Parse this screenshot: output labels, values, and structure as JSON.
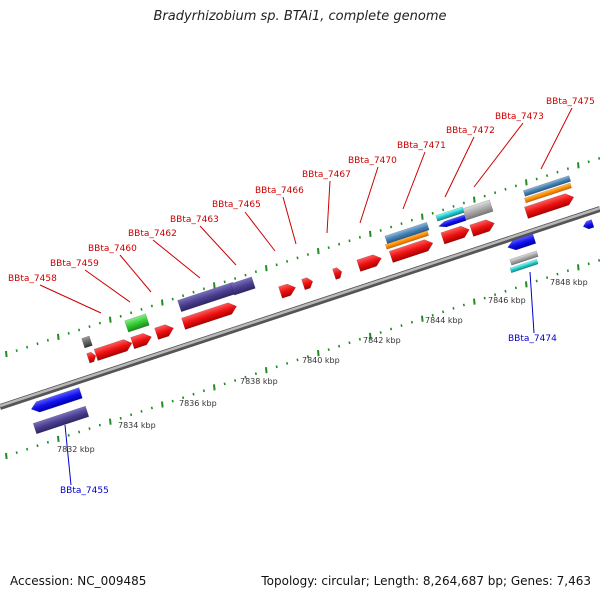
{
  "title": "Bradyrhizobium sp. BTAi1, complete genome",
  "accession_text": "Accession: NC_009485",
  "summary_text": "Topology: circular; Length: 8,264,687 bp; Genes: 7,463",
  "colors": {
    "backbone": "#9a9a9a",
    "tick": "#228b22",
    "forward_label": "#cc0000",
    "reverse_label": "#0000cc",
    "red": "#ee1111",
    "blue": "#1111ee",
    "purple": "#4b3f8f",
    "green": "#33cc33",
    "orange": "#ff8c00",
    "steel": "#4682b4",
    "cyan": "#22cccc",
    "grey": "#aaaaaa",
    "darkgrey": "#666666"
  },
  "kbp_labels": [
    "7832 kbp",
    "7834 kbp",
    "7836 kbp",
    "7838 kbp",
    "7840 kbp",
    "7842 kbp",
    "7844 kbp",
    "7846 kbp",
    "7848 kbp"
  ],
  "forward_genes": [
    "BBta_7458",
    "BBta_7459",
    "BBta_7460",
    "BBta_7462",
    "BBta_7463",
    "BBta_7465",
    "BBta_7466",
    "BBta_7467",
    "BBta_7470",
    "BBta_7471",
    "BBta_7472",
    "BBta_7473",
    "BBta_7475"
  ],
  "reverse_genes": [
    "BBta_7455",
    "BBta_7474"
  ]
}
